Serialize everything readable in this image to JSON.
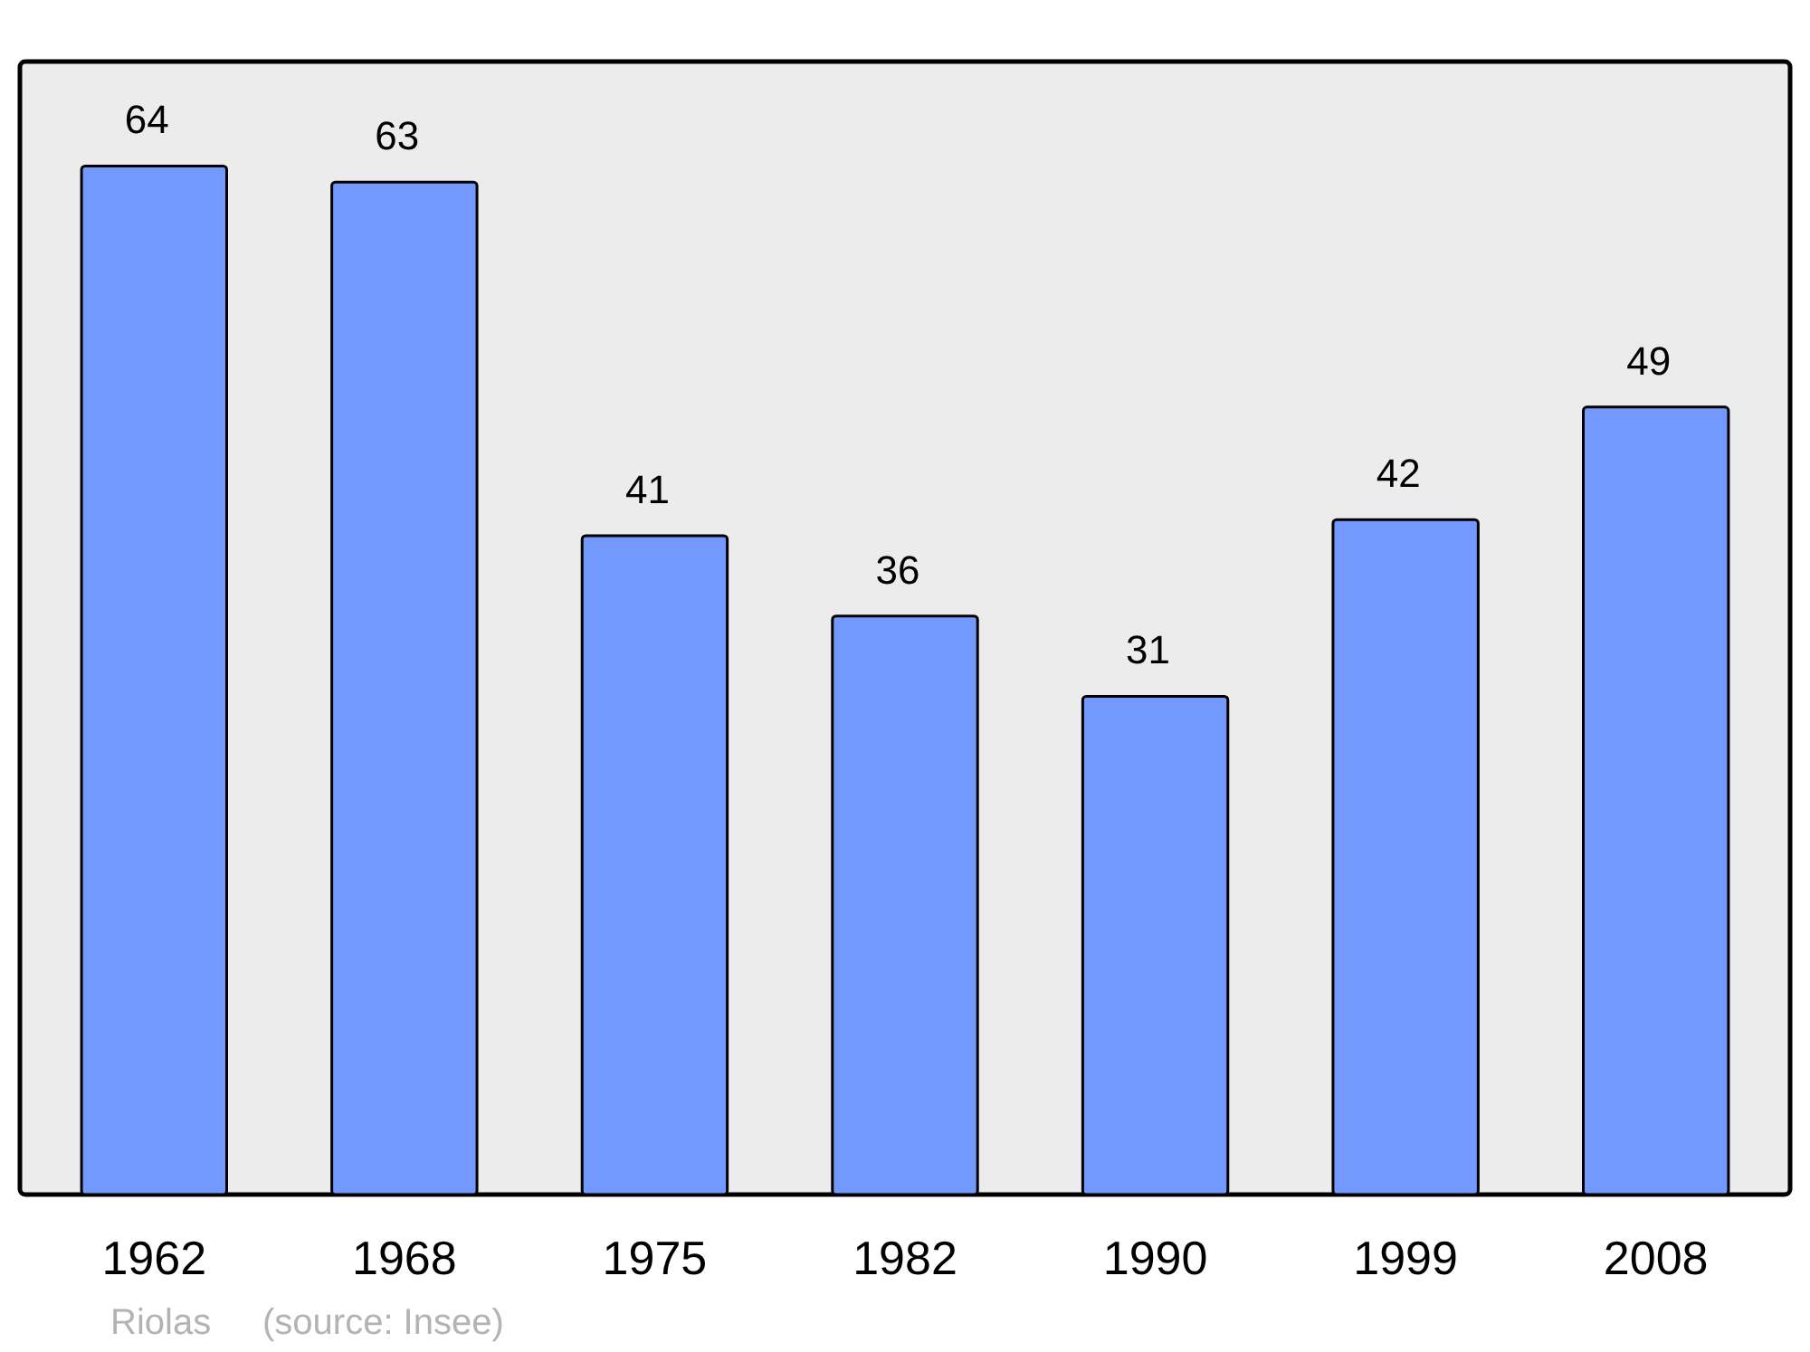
{
  "chart_data": {
    "type": "bar",
    "categories": [
      "1962",
      "1968",
      "1975",
      "1982",
      "1990",
      "1999",
      "2008"
    ],
    "values": [
      64,
      63,
      41,
      36,
      31,
      42,
      49
    ],
    "color": "#7399ff",
    "ylim": [
      0,
      70.5
    ],
    "data_labels": true,
    "annotations": [
      "Riolas",
      "(source: Insee)"
    ]
  }
}
